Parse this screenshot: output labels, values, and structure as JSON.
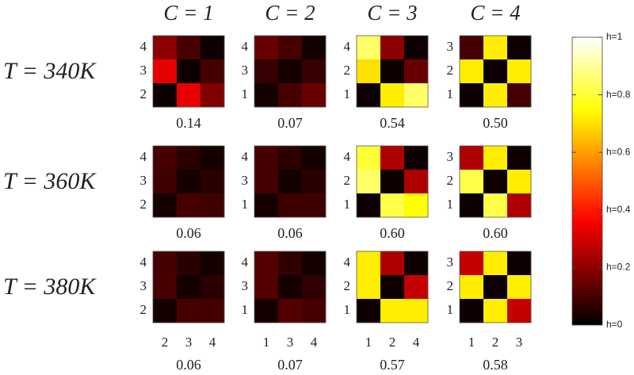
{
  "column_titles": [
    "C = 1",
    "C = 2",
    "C = 3",
    "C = 4"
  ],
  "row_titles": [
    "T = 340K",
    "T = 360K",
    "T = 380K"
  ],
  "colorbar": {
    "colormap": "hot",
    "lim": [
      0,
      1
    ],
    "ticks": [
      {
        "value": 0,
        "label": "h=0"
      },
      {
        "value": 0.2,
        "label": "h=0.2"
      },
      {
        "value": 0.4,
        "label": "h=0.4"
      },
      {
        "value": 0.6,
        "label": "h=0.6"
      },
      {
        "value": 0.8,
        "label": "h=0.8"
      },
      {
        "value": 1,
        "label": "h=1"
      }
    ]
  },
  "chart_data": [
    {
      "type": "heatmap",
      "y_categories": [
        "4",
        "3",
        "2"
      ],
      "values": [
        [
          0.2,
          0.1,
          0.02
        ],
        [
          0.33,
          0.02,
          0.1
        ],
        [
          0.02,
          0.33,
          0.18
        ]
      ],
      "caption": "0.14"
    },
    {
      "type": "heatmap",
      "y_categories": [
        "4",
        "3",
        "1"
      ],
      "values": [
        [
          0.15,
          0.1,
          0.03
        ],
        [
          0.08,
          0.03,
          0.08
        ],
        [
          0.03,
          0.1,
          0.15
        ]
      ],
      "caption": "0.07"
    },
    {
      "type": "heatmap",
      "y_categories": [
        "4",
        "2",
        "1"
      ],
      "values": [
        [
          0.85,
          0.2,
          0.02
        ],
        [
          0.7,
          0.02,
          0.15
        ],
        [
          0.02,
          0.72,
          0.85
        ]
      ],
      "caption": "0.54"
    },
    {
      "type": "heatmap",
      "y_categories": [
        "3",
        "2",
        "1"
      ],
      "values": [
        [
          0.1,
          0.72,
          0.02
        ],
        [
          0.72,
          0.02,
          0.72
        ],
        [
          0.02,
          0.72,
          0.1
        ]
      ],
      "caption": "0.50"
    },
    {
      "type": "heatmap",
      "y_categories": [
        "4",
        "3",
        "2"
      ],
      "values": [
        [
          0.1,
          0.06,
          0.03
        ],
        [
          0.09,
          0.03,
          0.06
        ],
        [
          0.03,
          0.1,
          0.09
        ]
      ],
      "caption": "0.06"
    },
    {
      "type": "heatmap",
      "y_categories": [
        "4",
        "3",
        "1"
      ],
      "values": [
        [
          0.1,
          0.06,
          0.03
        ],
        [
          0.1,
          0.03,
          0.06
        ],
        [
          0.03,
          0.09,
          0.09
        ]
      ],
      "caption": "0.06"
    },
    {
      "type": "heatmap",
      "y_categories": [
        "4",
        "2",
        "1"
      ],
      "values": [
        [
          0.8,
          0.25,
          0.02
        ],
        [
          0.85,
          0.02,
          0.25
        ],
        [
          0.02,
          0.82,
          0.75
        ]
      ],
      "caption": "0.60"
    },
    {
      "type": "heatmap",
      "y_categories": [
        "3",
        "2",
        "1"
      ],
      "values": [
        [
          0.25,
          0.72,
          0.02
        ],
        [
          0.82,
          0.02,
          0.72
        ],
        [
          0.02,
          0.82,
          0.25
        ]
      ],
      "caption": "0.60"
    },
    {
      "type": "heatmap",
      "y_categories": [
        "4",
        "3",
        "2"
      ],
      "x_categories": [
        "2",
        "3",
        "4"
      ],
      "values": [
        [
          0.1,
          0.06,
          0.03
        ],
        [
          0.1,
          0.03,
          0.06
        ],
        [
          0.03,
          0.1,
          0.1
        ]
      ],
      "caption": "0.06"
    },
    {
      "type": "heatmap",
      "y_categories": [
        "4",
        "3",
        "1"
      ],
      "x_categories": [
        "1",
        "3",
        "4"
      ],
      "values": [
        [
          0.12,
          0.07,
          0.03
        ],
        [
          0.12,
          0.03,
          0.07
        ],
        [
          0.03,
          0.12,
          0.1
        ]
      ],
      "caption": "0.07"
    },
    {
      "type": "heatmap",
      "y_categories": [
        "4",
        "2",
        "1"
      ],
      "x_categories": [
        "1",
        "2",
        "4"
      ],
      "values": [
        [
          0.72,
          0.25,
          0.02
        ],
        [
          0.72,
          0.02,
          0.28
        ],
        [
          0.02,
          0.72,
          0.72
        ]
      ],
      "caption": "0.57"
    },
    {
      "type": "heatmap",
      "y_categories": [
        "3",
        "2",
        "1"
      ],
      "x_categories": [
        "1",
        "2",
        "3"
      ],
      "values": [
        [
          0.28,
          0.72,
          0.02
        ],
        [
          0.72,
          0.02,
          0.72
        ],
        [
          0.02,
          0.72,
          0.28
        ]
      ],
      "caption": "0.58"
    }
  ]
}
